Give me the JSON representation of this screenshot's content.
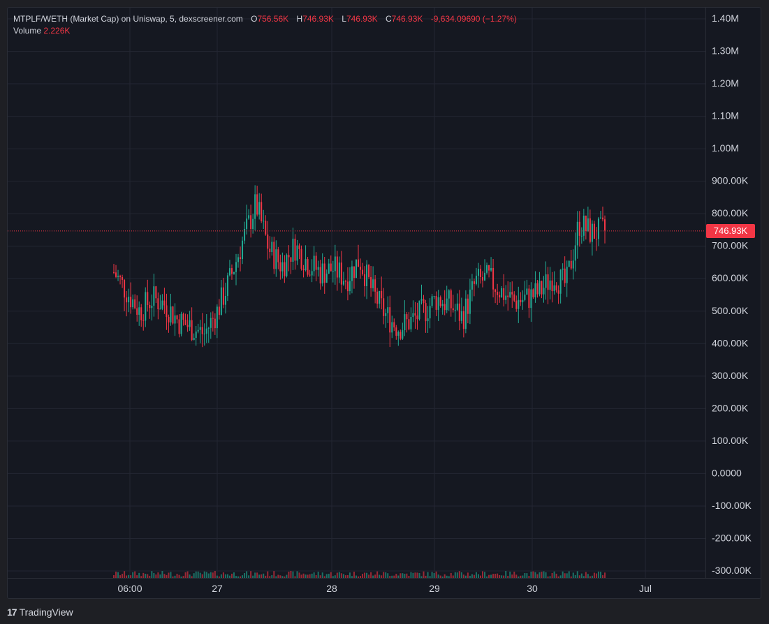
{
  "legend": {
    "symbol": "MTPLF/WETH (Market Cap) on Uniswap, 5, dexscreener.com",
    "open_label": "O",
    "open": "756.56K",
    "high_label": "H",
    "high": "746.93K",
    "low_label": "L",
    "low": "746.93K",
    "close_label": "C",
    "close": "746.93K",
    "change": "-9,634.09690 (−1.27%)",
    "volume_label": "Volume",
    "volume": "2.226K"
  },
  "current_price_tag": "746.93K",
  "footer": {
    "brand": "TradingView",
    "logo_glyph": "17"
  },
  "colors": {
    "up": "#22ab94",
    "down": "#f23645",
    "grid": "#232632",
    "text": "#d1d4dc",
    "background": "#151821"
  },
  "chart_data": {
    "type": "candlestick",
    "title": "MTPLF/WETH (Market Cap) on Uniswap, 5, dexscreener.com",
    "ylim": [
      -300000,
      1400000
    ],
    "y_ticks": [
      "1.40M",
      "1.30M",
      "1.20M",
      "1.10M",
      "1.00M",
      "900.00K",
      "800.00K",
      "700.00K",
      "600.00K",
      "500.00K",
      "400.00K",
      "300.00K",
      "200.00K",
      "100.00K",
      "0.0000",
      "-100.00K",
      "-200.00K",
      "-300.00K"
    ],
    "x_ticks": [
      "06:00",
      "27",
      "28",
      "29",
      "30",
      "Jul"
    ],
    "current_value": 746930,
    "series": [
      {
        "name": "Market Cap",
        "x_time": [
          "26 04:00",
          "26 06:00",
          "26 08:00",
          "26 10:00",
          "26 12:00",
          "26 14:00",
          "26 16:00",
          "26 18:00",
          "26 20:00",
          "26 22:00",
          "27 00:00",
          "27 02:00",
          "27 04:00",
          "27 06:00",
          "27 08:00",
          "27 10:00",
          "27 12:00",
          "27 14:00",
          "27 16:00",
          "27 18:00",
          "27 20:00",
          "27 22:00",
          "28 00:00",
          "28 04:00",
          "28 08:00",
          "28 12:00",
          "28 16:00",
          "28 20:00",
          "29 00:00",
          "29 04:00",
          "29 08:00",
          "29 12:00",
          "29 16:00",
          "29 20:00",
          "30 00:00",
          "30 04:00",
          "30 08:00",
          "30 12:00",
          "30 16:00"
        ],
        "values": [
          620000,
          560000,
          500000,
          540000,
          520000,
          470000,
          450000,
          430000,
          500000,
          600000,
          720000,
          830000,
          690000,
          640000,
          700000,
          650000,
          620000,
          630000,
          600000,
          660000,
          560000,
          490000,
          450000,
          470000,
          500000,
          540000,
          520000,
          480000,
          590000,
          600000,
          560000,
          530000,
          540000,
          560000,
          610000,
          580000,
          770000,
          740000,
          747000
        ]
      }
    ]
  }
}
